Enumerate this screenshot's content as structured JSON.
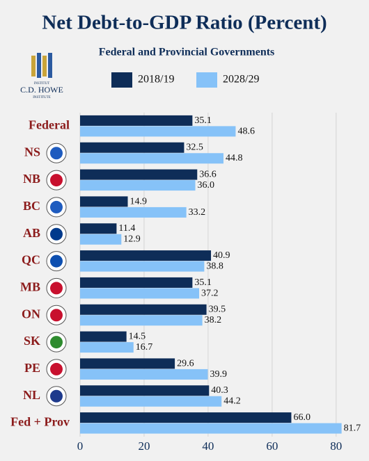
{
  "logo": {
    "lines": [
      "INSTITUT",
      "C.D. HOWE",
      "INSTITUTE"
    ]
  },
  "chart_data": {
    "type": "hbar",
    "title": "Net Debt-to-GDP Ratio (Percent)",
    "subtitle": "Federal and Provincial Governments",
    "categories": [
      "Federal",
      "NS",
      "NB",
      "BC",
      "AB",
      "QC",
      "MB",
      "ON",
      "SK",
      "PE",
      "NL",
      "Fed + Prov"
    ],
    "series": [
      {
        "name": "2018/19",
        "color": "#0e2d58",
        "values": [
          35.1,
          32.5,
          36.6,
          14.9,
          11.4,
          40.9,
          35.1,
          39.5,
          14.5,
          29.6,
          40.3,
          66.0
        ],
        "value_labels": [
          "35.1",
          "32.5",
          "36.6",
          "14.9",
          "11.4",
          "40.9",
          "35.1",
          "39.5",
          "14.5",
          "29.6",
          "40.3",
          "66.0"
        ]
      },
      {
        "name": "2028/29",
        "color": "#86c2f8",
        "values": [
          48.6,
          44.8,
          36.0,
          33.2,
          12.9,
          38.8,
          37.2,
          38.2,
          16.7,
          39.9,
          44.2,
          81.7
        ],
        "value_labels": [
          "48.6",
          "44.8",
          "36.0",
          "33.2",
          "12.9",
          "38.8",
          "37.2",
          "38.2",
          "16.7",
          "39.9",
          "44.2",
          "81.7"
        ]
      }
    ],
    "xlim": [
      0,
      82
    ],
    "xticks": [
      0,
      20,
      40,
      60,
      80
    ],
    "grid": true
  }
}
